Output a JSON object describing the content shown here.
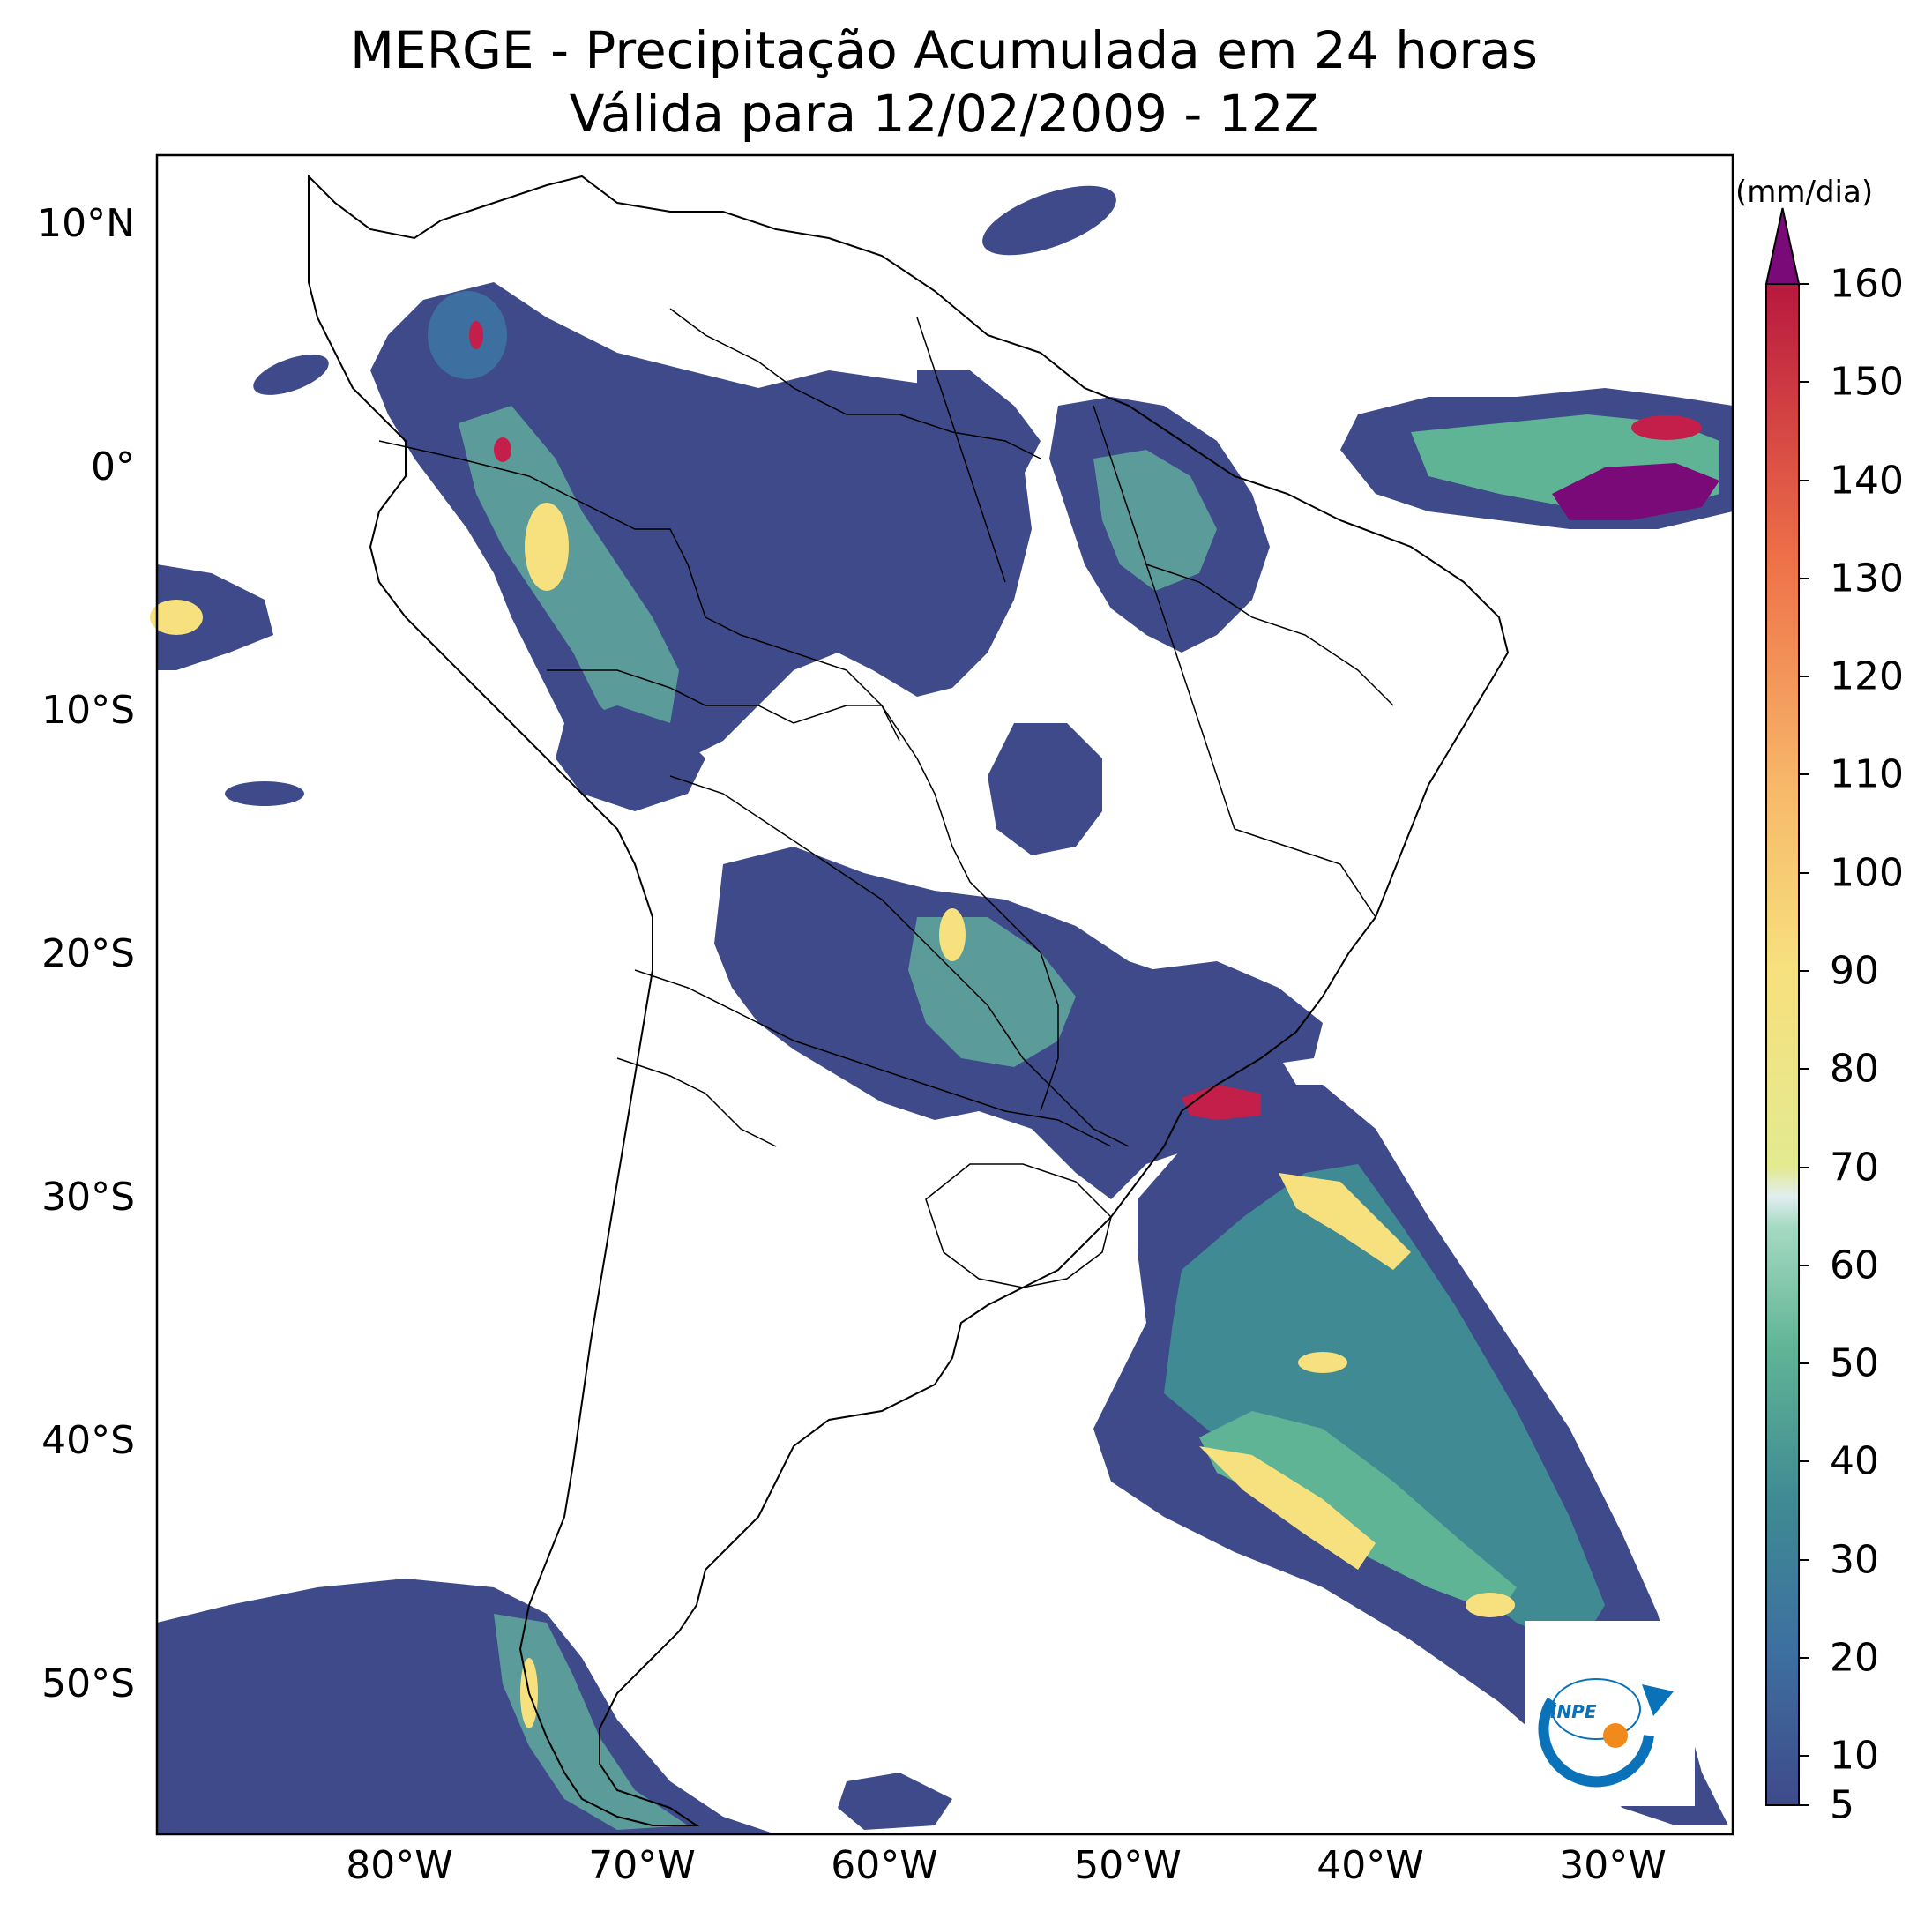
{
  "title_line1": "MERGE - Precipitação Acumulada em 24 horas",
  "title_line2": "Válida para 12/02/2009 - 12Z",
  "lat_labels": [
    "10°N",
    "0°",
    "10°S",
    "20°S",
    "30°S",
    "40°S",
    "50°S"
  ],
  "lon_labels": [
    "80°W",
    "70°W",
    "60°W",
    "50°W",
    "40°W",
    "30°W"
  ],
  "colorbar": {
    "unit": "(mm/dia)",
    "tick_labels": [
      "5",
      "10",
      "20",
      "30",
      "40",
      "50",
      "60",
      "70",
      "80",
      "90",
      "100",
      "110",
      "120",
      "130",
      "140",
      "150",
      "160"
    ],
    "extend": "max",
    "colors": {
      "low": "#3f4a8a",
      "mid": "#5fb8a0",
      "high": "#f2ea8a",
      "peak": "#c41e4a",
      "over": "#7a0a78"
    }
  },
  "logo_text": "INPE",
  "chart_data": {
    "type": "heatmap",
    "title": "MERGE - Precipitação Acumulada em 24 horas",
    "subtitle": "Válida para 12/02/2009 - 12Z",
    "xlabel": "",
    "ylabel": "",
    "lon_range": [
      -90,
      -25
    ],
    "lat_range": [
      -55,
      13
    ],
    "levels_mm_per_day": [
      5,
      10,
      15,
      20,
      25,
      30,
      35,
      40,
      45,
      50,
      55,
      60,
      65,
      70,
      75,
      80,
      85,
      90,
      95,
      100,
      105,
      110,
      115,
      120,
      125,
      130,
      135,
      140,
      145,
      150,
      155,
      160
    ],
    "extend": "max",
    "colorbar_unit": "(mm/dia)"
  }
}
